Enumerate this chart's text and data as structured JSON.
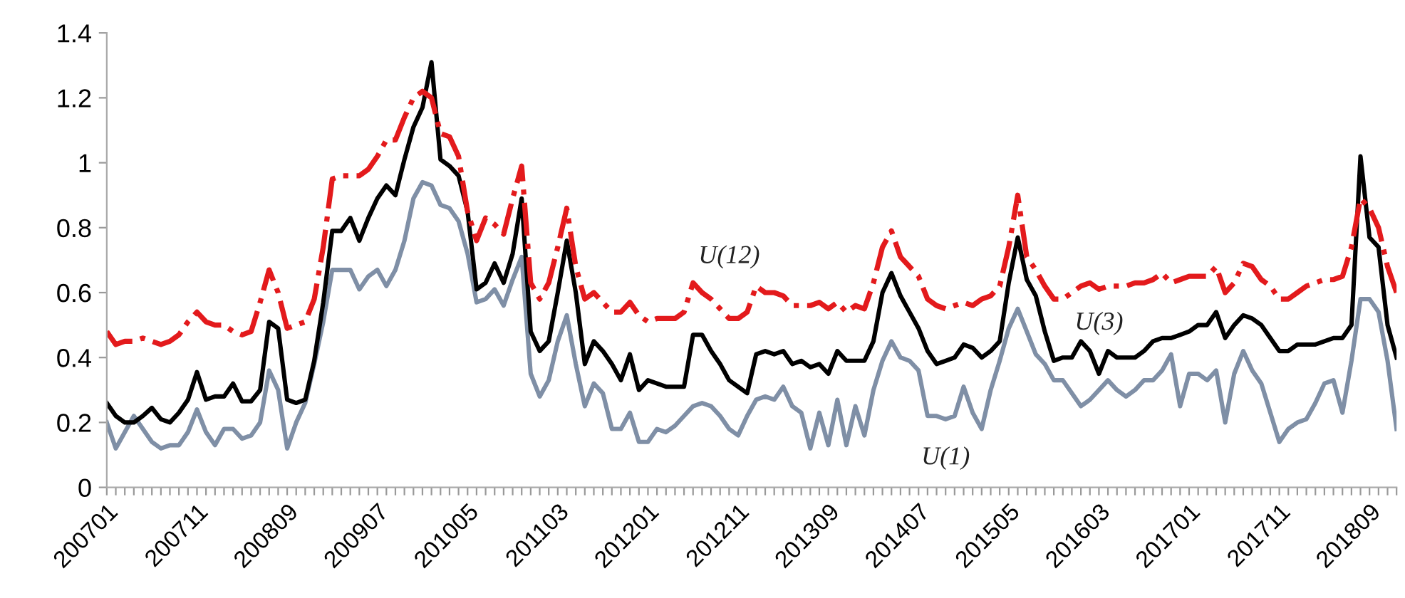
{
  "chart_data": {
    "type": "line",
    "categories": [
      "200701",
      null,
      null,
      null,
      null,
      null,
      null,
      null,
      null,
      null,
      "200711",
      null,
      null,
      null,
      null,
      null,
      null,
      null,
      null,
      null,
      "200809",
      null,
      null,
      null,
      null,
      null,
      null,
      null,
      null,
      null,
      "200907",
      null,
      null,
      null,
      null,
      null,
      null,
      null,
      null,
      null,
      "201005",
      null,
      null,
      null,
      null,
      null,
      null,
      null,
      null,
      null,
      "201103",
      null,
      null,
      null,
      null,
      null,
      null,
      null,
      null,
      null,
      "201201",
      null,
      null,
      null,
      null,
      null,
      null,
      null,
      null,
      null,
      "201211",
      null,
      null,
      null,
      null,
      null,
      null,
      null,
      null,
      null,
      "201309",
      null,
      null,
      null,
      null,
      null,
      null,
      null,
      null,
      null,
      "201407",
      null,
      null,
      null,
      null,
      null,
      null,
      null,
      null,
      null,
      "201505",
      null,
      null,
      null,
      null,
      null,
      null,
      null,
      null,
      null,
      "201603",
      null,
      null,
      null,
      null,
      null,
      null,
      null,
      null,
      null,
      "201701",
      null,
      null,
      null,
      null,
      null,
      null,
      null,
      null,
      null,
      "201711",
      null,
      null,
      null,
      null,
      null,
      null,
      null,
      null,
      null,
      "201809",
      null,
      null,
      null
    ],
    "series": [
      {
        "name": "U(1)",
        "color": "#7f8fa6",
        "line_style": "solid",
        "values": [
          0.2,
          0.12,
          0.17,
          0.22,
          0.18,
          0.14,
          0.12,
          0.13,
          0.13,
          0.17,
          0.24,
          0.17,
          0.13,
          0.18,
          0.18,
          0.15,
          0.16,
          0.2,
          0.36,
          0.3,
          0.12,
          0.2,
          0.26,
          0.38,
          0.51,
          0.67,
          0.67,
          0.67,
          0.61,
          0.65,
          0.67,
          0.62,
          0.67,
          0.76,
          0.89,
          0.94,
          0.93,
          0.87,
          0.86,
          0.82,
          0.72,
          0.57,
          0.58,
          0.61,
          0.56,
          0.64,
          0.71,
          0.35,
          0.28,
          0.33,
          0.45,
          0.53,
          0.38,
          0.25,
          0.32,
          0.29,
          0.18,
          0.18,
          0.23,
          0.14,
          0.14,
          0.18,
          0.17,
          0.19,
          0.22,
          0.25,
          0.26,
          0.25,
          0.22,
          0.18,
          0.16,
          0.22,
          0.27,
          0.28,
          0.27,
          0.31,
          0.25,
          0.23,
          0.12,
          0.23,
          0.13,
          0.27,
          0.13,
          0.25,
          0.16,
          0.3,
          0.39,
          0.45,
          0.4,
          0.39,
          0.36,
          0.22,
          0.22,
          0.21,
          0.22,
          0.31,
          0.23,
          0.18,
          0.3,
          0.39,
          0.49,
          0.55,
          0.48,
          0.41,
          0.38,
          0.33,
          0.33,
          0.29,
          0.25,
          0.27,
          0.3,
          0.33,
          0.3,
          0.28,
          0.3,
          0.33,
          0.33,
          0.36,
          0.41,
          0.25,
          0.35,
          0.35,
          0.33,
          0.36,
          0.2,
          0.35,
          0.42,
          0.36,
          0.32,
          0.23,
          0.14,
          0.18,
          0.2,
          0.21,
          0.26,
          0.32,
          0.33,
          0.23,
          0.39,
          0.58,
          0.58,
          0.54,
          0.39,
          0.18
        ]
      },
      {
        "name": "U(3)",
        "color": "#000000",
        "line_style": "solid",
        "values": [
          0.26,
          0.22,
          0.2,
          0.2,
          0.22,
          0.245,
          0.21,
          0.2,
          0.23,
          0.27,
          0.355,
          0.27,
          0.28,
          0.28,
          0.32,
          0.265,
          0.265,
          0.3,
          0.51,
          0.49,
          0.27,
          0.26,
          0.27,
          0.39,
          0.57,
          0.79,
          0.79,
          0.83,
          0.76,
          0.83,
          0.89,
          0.93,
          0.9,
          1.01,
          1.11,
          1.17,
          1.31,
          1.01,
          0.99,
          0.96,
          0.85,
          0.61,
          0.63,
          0.69,
          0.63,
          0.72,
          0.89,
          0.48,
          0.42,
          0.45,
          0.6,
          0.76,
          0.6,
          0.38,
          0.45,
          0.42,
          0.38,
          0.33,
          0.41,
          0.3,
          0.33,
          0.32,
          0.31,
          0.31,
          0.31,
          0.47,
          0.47,
          0.42,
          0.38,
          0.33,
          0.31,
          0.29,
          0.41,
          0.42,
          0.41,
          0.42,
          0.38,
          0.39,
          0.37,
          0.38,
          0.35,
          0.42,
          0.39,
          0.39,
          0.39,
          0.45,
          0.6,
          0.66,
          0.59,
          0.54,
          0.49,
          0.42,
          0.38,
          0.39,
          0.4,
          0.44,
          0.43,
          0.4,
          0.42,
          0.45,
          0.63,
          0.77,
          0.64,
          0.59,
          0.48,
          0.39,
          0.4,
          0.4,
          0.45,
          0.42,
          0.35,
          0.42,
          0.4,
          0.4,
          0.4,
          0.42,
          0.45,
          0.46,
          0.46,
          0.47,
          0.48,
          0.5,
          0.5,
          0.54,
          0.46,
          0.5,
          0.53,
          0.52,
          0.5,
          0.46,
          0.42,
          0.42,
          0.44,
          0.44,
          0.44,
          0.45,
          0.46,
          0.46,
          0.5,
          1.02,
          0.77,
          0.74,
          0.5,
          0.4
        ]
      },
      {
        "name": "U(12)",
        "color": "#e31a1c",
        "line_style": "dashdot",
        "values": [
          0.48,
          0.44,
          0.45,
          0.45,
          0.46,
          0.45,
          0.44,
          0.45,
          0.47,
          0.51,
          0.54,
          0.51,
          0.5,
          0.5,
          0.48,
          0.47,
          0.48,
          0.57,
          0.67,
          0.6,
          0.49,
          0.5,
          0.51,
          0.58,
          0.74,
          0.95,
          0.96,
          0.96,
          0.96,
          0.98,
          1.02,
          1.07,
          1.07,
          1.14,
          1.2,
          1.22,
          1.2,
          1.09,
          1.08,
          1.02,
          0.85,
          0.76,
          0.83,
          0.81,
          0.78,
          0.89,
          0.99,
          0.63,
          0.58,
          0.63,
          0.74,
          0.86,
          0.68,
          0.58,
          0.6,
          0.57,
          0.54,
          0.54,
          0.57,
          0.53,
          0.51,
          0.52,
          0.52,
          0.52,
          0.54,
          0.63,
          0.6,
          0.58,
          0.55,
          0.52,
          0.52,
          0.54,
          0.62,
          0.6,
          0.6,
          0.59,
          0.56,
          0.56,
          0.56,
          0.57,
          0.55,
          0.57,
          0.54,
          0.56,
          0.55,
          0.63,
          0.74,
          0.79,
          0.71,
          0.68,
          0.65,
          0.58,
          0.56,
          0.55,
          0.56,
          0.57,
          0.56,
          0.58,
          0.59,
          0.62,
          0.74,
          0.9,
          0.71,
          0.67,
          0.62,
          0.58,
          0.58,
          0.6,
          0.62,
          0.63,
          0.61,
          0.62,
          0.62,
          0.62,
          0.63,
          0.63,
          0.64,
          0.66,
          0.63,
          0.64,
          0.65,
          0.65,
          0.65,
          0.68,
          0.6,
          0.63,
          0.69,
          0.68,
          0.64,
          0.62,
          0.58,
          0.58,
          0.6,
          0.62,
          0.63,
          0.64,
          0.64,
          0.65,
          0.74,
          0.89,
          0.86,
          0.8,
          0.68,
          0.6
        ]
      }
    ],
    "ylim": [
      0,
      1.4
    ],
    "yticks": [
      0,
      0.2,
      0.4,
      0.6,
      0.8,
      1,
      1.2,
      1.4
    ],
    "grid": false,
    "legend": false,
    "marker": "none"
  }
}
